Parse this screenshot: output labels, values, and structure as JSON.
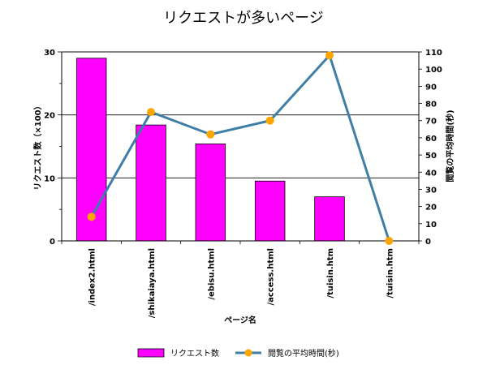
{
  "chart_data": {
    "type": "bar",
    "title": "リクエストが多いページ",
    "xlabel": "ページ名",
    "ylabel": "リクエスト数（×100）",
    "y2label": "閲覧の平均時間(秒)",
    "categories": [
      "/index2.html",
      "/shikaiaya.html",
      "/ebisu.html",
      "/access.html",
      "/tuisin.htm",
      "/tuisin.htm"
    ],
    "ylim": [
      0,
      30
    ],
    "y2lim": [
      0,
      110
    ],
    "yticks": [
      0,
      10,
      20,
      30
    ],
    "y2ticks": [
      0,
      10,
      20,
      30,
      40,
      50,
      60,
      70,
      80,
      90,
      100,
      110
    ],
    "grid": true,
    "legend_position": "bottom",
    "series": [
      {
        "name": "リクエスト数",
        "kind": "bar",
        "axis": "left",
        "color": "#ff00ff",
        "values": [
          29,
          18.4,
          15.4,
          9.5,
          7,
          0
        ]
      },
      {
        "name": "閲覧の平均時間(秒)",
        "kind": "line",
        "axis": "right",
        "color": "#3f7fa7",
        "marker_color": "#ffa500",
        "values": [
          14,
          75,
          62,
          70,
          108,
          0
        ]
      }
    ]
  }
}
